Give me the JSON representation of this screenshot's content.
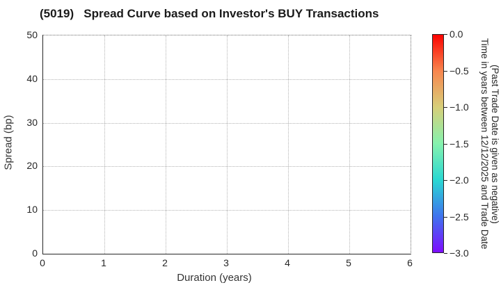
{
  "chart_data": {
    "type": "scatter",
    "title": "(5019)   Spread Curve based on Investor's BUY Transactions",
    "xlabel": "Duration (years)",
    "ylabel": "Spread (bp)",
    "xlim": [
      0,
      6
    ],
    "ylim": [
      0,
      50
    ],
    "xticks": [
      "0",
      "1",
      "2",
      "3",
      "4",
      "5",
      "6"
    ],
    "yticks": [
      "0",
      "10",
      "20",
      "30",
      "40",
      "50"
    ],
    "grid": {
      "style": "dotted",
      "color": "#b3b3b3",
      "on": true
    },
    "points": [],
    "series": [],
    "axis_color": "#262626",
    "text_color": "#262626",
    "colorbar": {
      "title_lines": [
        "Time in years between 12/12/2025 and Trade Date",
        "(Past Trade Date is given as negative)"
      ],
      "ticks": [
        "0.0",
        "−0.5",
        "−1.0",
        "−1.5",
        "−2.0",
        "−2.5",
        "−3.0"
      ],
      "vmax": 0.0,
      "vmin": -3.0,
      "colormap": "rainbow reversed",
      "gradient_stops": [
        "#fb0300",
        "#f8864e",
        "#d7cf7a",
        "#86f2ae",
        "#2ad8d2",
        "#3f74ee",
        "#7d0dfe"
      ]
    }
  }
}
